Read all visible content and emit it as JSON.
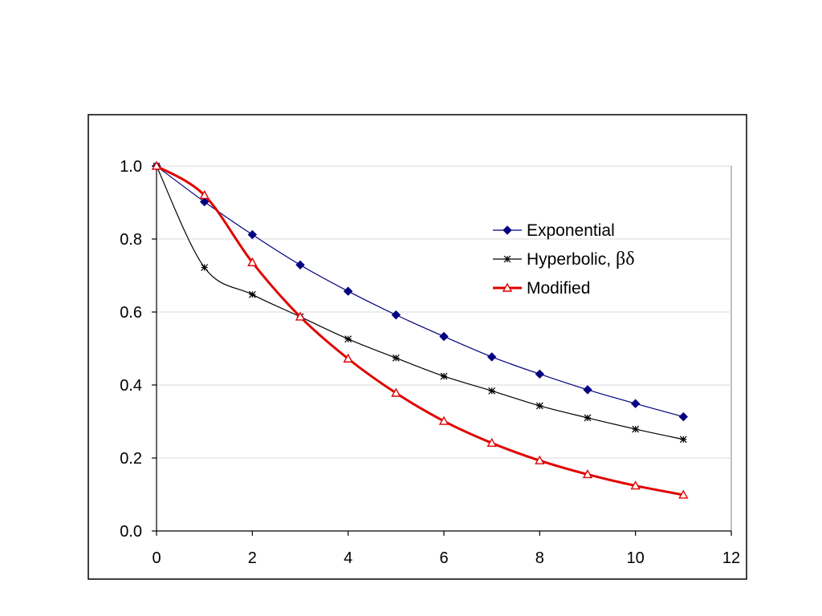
{
  "chart_data": {
    "type": "line",
    "title": "",
    "xlabel": "",
    "ylabel": "",
    "xlim": [
      0,
      12
    ],
    "ylim": [
      0,
      1.0
    ],
    "x_ticks": [
      0,
      2,
      4,
      6,
      8,
      10,
      12
    ],
    "y_ticks": [
      0.0,
      0.2,
      0.4,
      0.6,
      0.8,
      1.0
    ],
    "x_tick_labels": [
      "0",
      "2",
      "4",
      "6",
      "8",
      "10",
      "12"
    ],
    "y_tick_labels": [
      "0.0",
      "0.2",
      "0.4",
      "0.6",
      "0.8",
      "1.0"
    ],
    "grid": "horizontal",
    "legend_position": "top-right",
    "series": [
      {
        "name": "Exponential",
        "color": "#000080",
        "marker": "diamond",
        "x": [
          0,
          1,
          2,
          3,
          4,
          5,
          6,
          7,
          8,
          9,
          10,
          11
        ],
        "values": [
          1.0,
          0.902,
          0.812,
          0.729,
          0.657,
          0.592,
          0.533,
          0.477,
          0.43,
          0.387,
          0.349,
          0.313
        ]
      },
      {
        "name": "Hyperbolic, βδ",
        "name_text": "Hyperbolic,",
        "name_greek": "βδ",
        "color": "#000000",
        "marker": "asterisk",
        "x": [
          0,
          1,
          2,
          3,
          4,
          5,
          6,
          7,
          8,
          9,
          10,
          11
        ],
        "values": [
          1.0,
          0.722,
          0.648,
          0.587,
          0.526,
          0.474,
          0.424,
          0.384,
          0.343,
          0.31,
          0.279,
          0.251
        ]
      },
      {
        "name": "Modified",
        "color": "#e00000",
        "marker": "triangle",
        "x": [
          0,
          1,
          2,
          3,
          4,
          5,
          6,
          7,
          8,
          9,
          10,
          11
        ],
        "values": [
          1.0,
          0.92,
          0.736,
          0.587,
          0.472,
          0.378,
          0.301,
          0.241,
          0.193,
          0.155,
          0.124,
          0.099
        ]
      }
    ]
  }
}
